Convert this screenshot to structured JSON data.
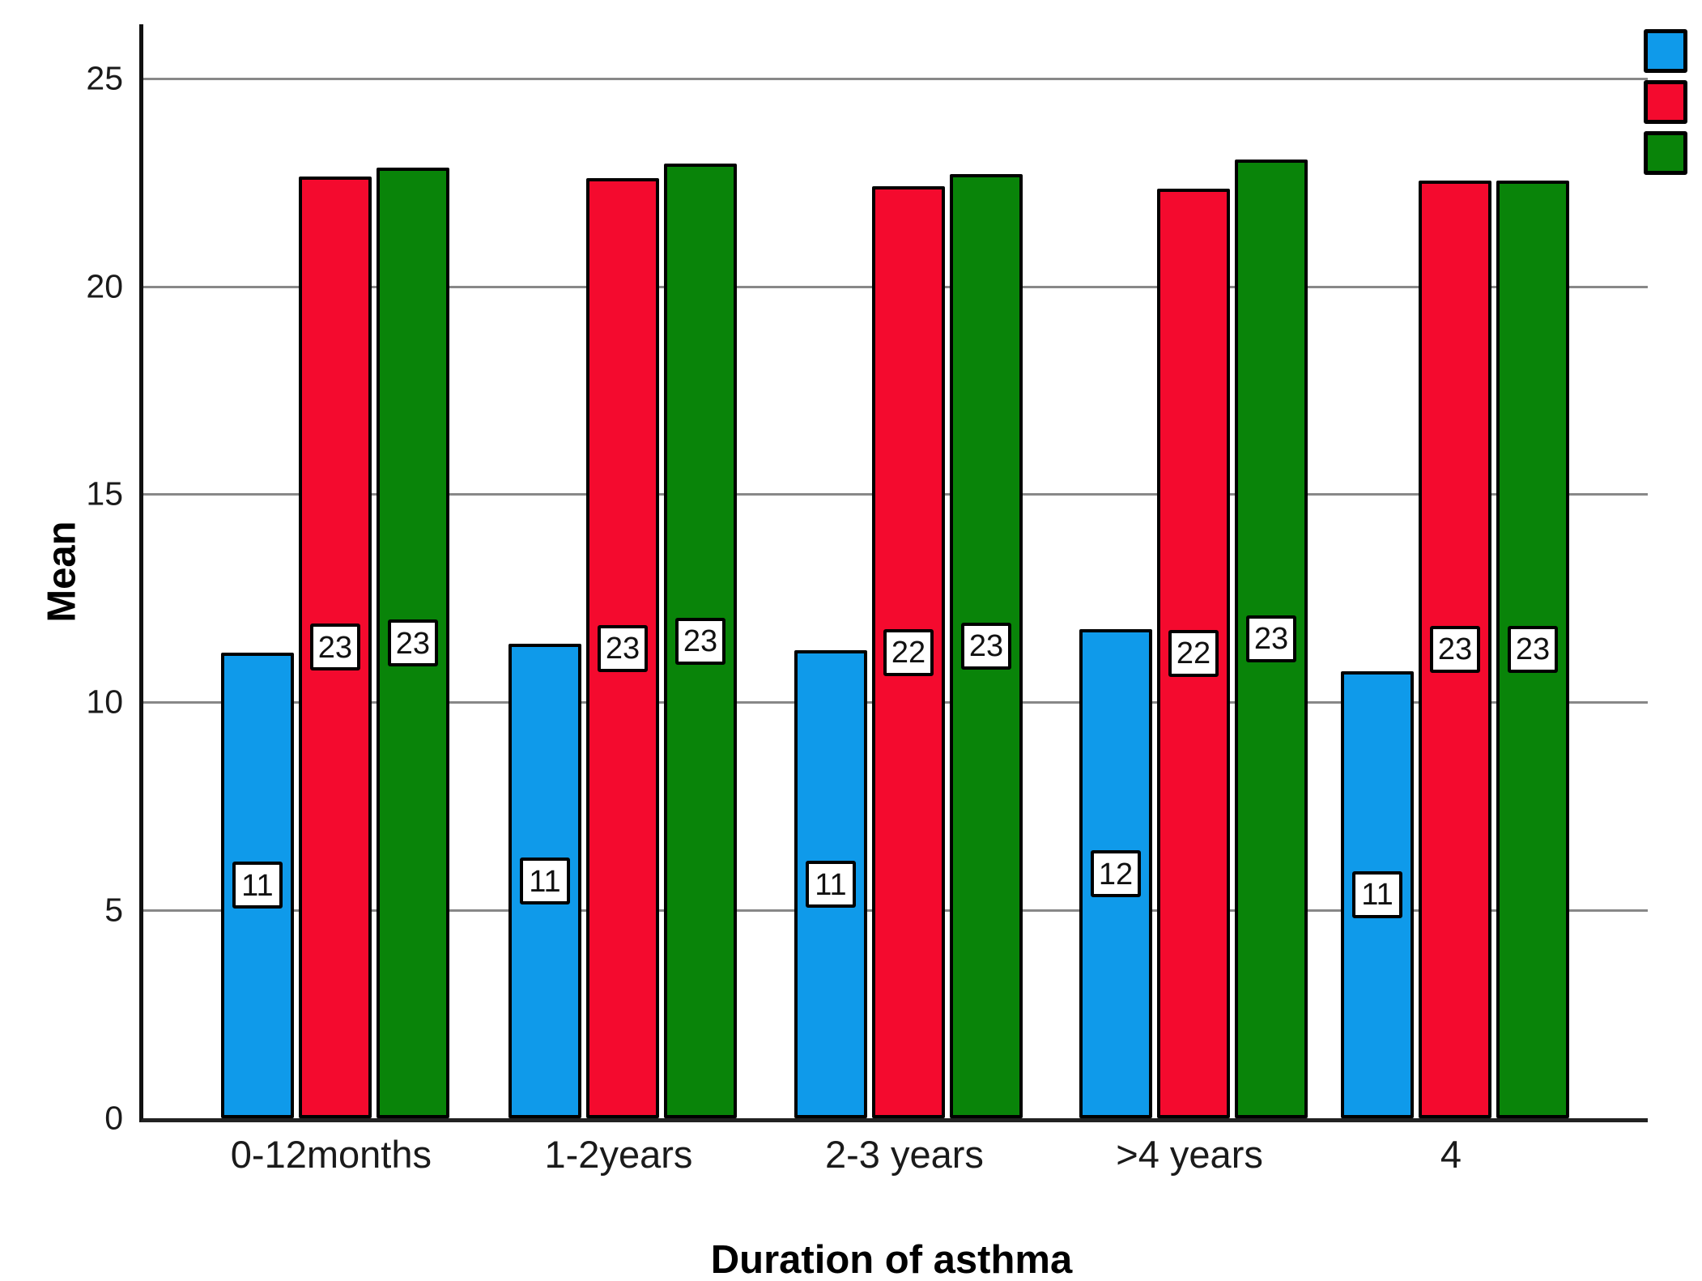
{
  "chart_data": {
    "type": "bar",
    "title": "",
    "xlabel": "Duration of asthma",
    "ylabel": "Mean",
    "categories": [
      "0-12months",
      "1-2years",
      "2-3 years",
      ">4 years",
      "4"
    ],
    "series": [
      {
        "name": "blue",
        "color": "#0f9aea",
        "values": [
          11.2,
          11.4,
          11.25,
          11.75,
          10.75
        ],
        "bar_labels": [
          "11",
          "11",
          "11",
          "12",
          "11"
        ]
      },
      {
        "name": "red",
        "color": "#f40a2e",
        "values": [
          22.65,
          22.6,
          22.4,
          22.35,
          22.55
        ],
        "bar_labels": [
          "23",
          "23",
          "22",
          "22",
          "23"
        ]
      },
      {
        "name": "green",
        "color": "#098409",
        "values": [
          22.85,
          22.95,
          22.7,
          23.05,
          22.55
        ],
        "bar_labels": [
          "23",
          "23",
          "23",
          "23",
          "23"
        ]
      }
    ],
    "ylim": [
      0,
      26.3
    ],
    "yticks": [
      0,
      5,
      10,
      15,
      20,
      25
    ],
    "grid": true,
    "legend_position": "top-right",
    "legend_text_visible": false
  }
}
